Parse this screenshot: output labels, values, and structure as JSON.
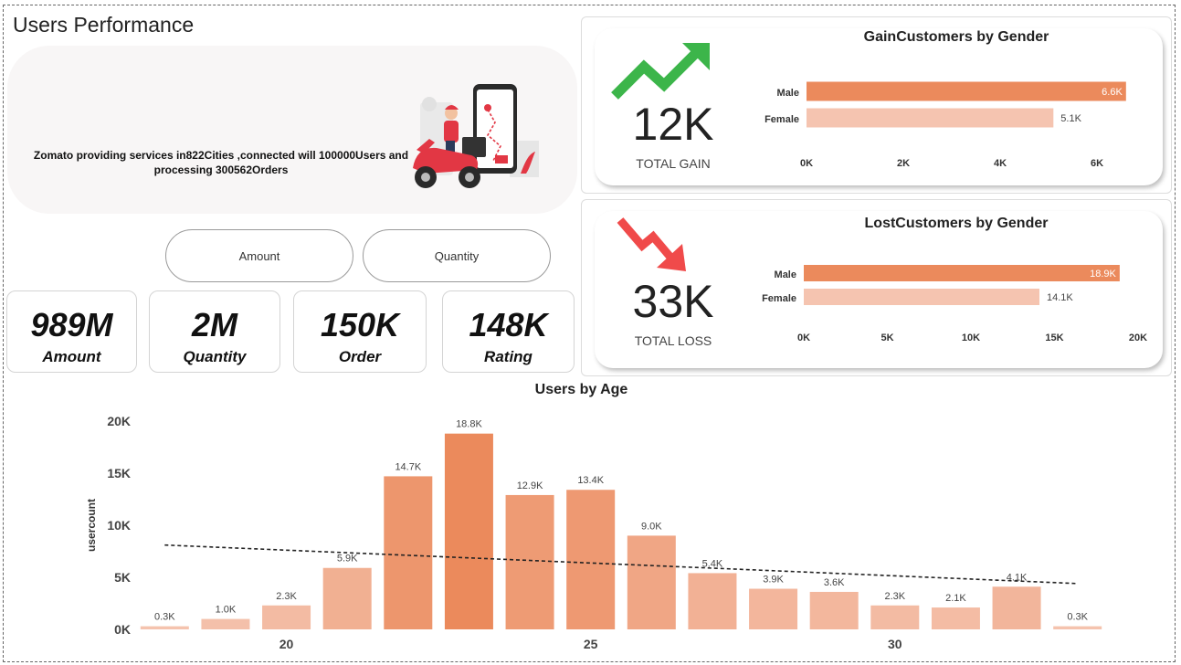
{
  "page_title": "Users  Performance",
  "banner": {
    "line1": "Zomato providing services in822Cities ,connected will 100000Users and",
    "line2": "processing 300562Orders",
    "art_icon": "delivery-scooter-phone-icon"
  },
  "slicers": [
    {
      "label": "Amount"
    },
    {
      "label": "Quantity"
    }
  ],
  "kpis": [
    {
      "value": "989M",
      "label": "Amount"
    },
    {
      "value": "2M",
      "label": "Quantity"
    },
    {
      "value": "150K",
      "label": "Order"
    },
    {
      "value": "148K",
      "label": "Rating"
    }
  ],
  "colors": {
    "gain_arrow": "#3cb54a",
    "loss_arrow": "#f04a4a",
    "bar_dark": "#eb8a5c",
    "bar_light": "#f5c4b0"
  },
  "gain_card": {
    "big": "12K",
    "sub": "TOTAL GAIN",
    "icon": "trend-up-arrow-icon"
  },
  "loss_card": {
    "big": "33K",
    "sub": "TOTAL LOSS",
    "icon": "trend-down-arrow-icon"
  },
  "chart_data": [
    {
      "id": "gain",
      "type": "bar",
      "orientation": "horizontal",
      "title": "GainCustomers by Gender",
      "categories": [
        "Male",
        "Female"
      ],
      "values": [
        6600,
        5100
      ],
      "data_labels": [
        "6.6K",
        "5.1K"
      ],
      "xlim": [
        0,
        7000
      ],
      "xticks": [
        0,
        2000,
        4000,
        6000
      ],
      "xtick_labels": [
        "0K",
        "2K",
        "4K",
        "6K"
      ]
    },
    {
      "id": "loss",
      "type": "bar",
      "orientation": "horizontal",
      "title": "LostCustomers by Gender",
      "categories": [
        "Male",
        "Female"
      ],
      "values": [
        18900,
        14100
      ],
      "data_labels": [
        "18.9K",
        "14.1K"
      ],
      "xlim": [
        0,
        20000
      ],
      "xticks": [
        0,
        5000,
        10000,
        15000,
        20000
      ],
      "xtick_labels": [
        "0K",
        "5K",
        "10K",
        "15K",
        "20K"
      ]
    },
    {
      "id": "age",
      "type": "bar",
      "title": "Users by Age",
      "ylabel": "usercount",
      "x": [
        18,
        19,
        20,
        21,
        22,
        23,
        24,
        25,
        26,
        27,
        28,
        29,
        30,
        31,
        32,
        33
      ],
      "values": [
        300,
        1000,
        2300,
        5900,
        14700,
        18800,
        12900,
        13400,
        9000,
        5400,
        3900,
        3600,
        2300,
        2100,
        4100,
        300
      ],
      "data_labels": [
        "0.3K",
        "1.0K",
        "2.3K",
        "5.9K",
        "14.7K",
        "18.8K",
        "12.9K",
        "13.4K",
        "9.0K",
        "5.4K",
        "3.9K",
        "3.6K",
        "2.3K",
        "2.1K",
        "4.1K",
        "0.3K"
      ],
      "ylim": [
        0,
        20000
      ],
      "yticks": [
        0,
        5000,
        10000,
        15000,
        20000
      ],
      "ytick_labels": [
        "0K",
        "5K",
        "10K",
        "15K",
        "20K"
      ],
      "xtick_values": [
        20,
        25,
        30
      ],
      "xtick_labels": [
        "20",
        "25",
        "30"
      ],
      "trendline": {
        "style": "dashed",
        "start": 8100,
        "end": 4400
      }
    }
  ]
}
